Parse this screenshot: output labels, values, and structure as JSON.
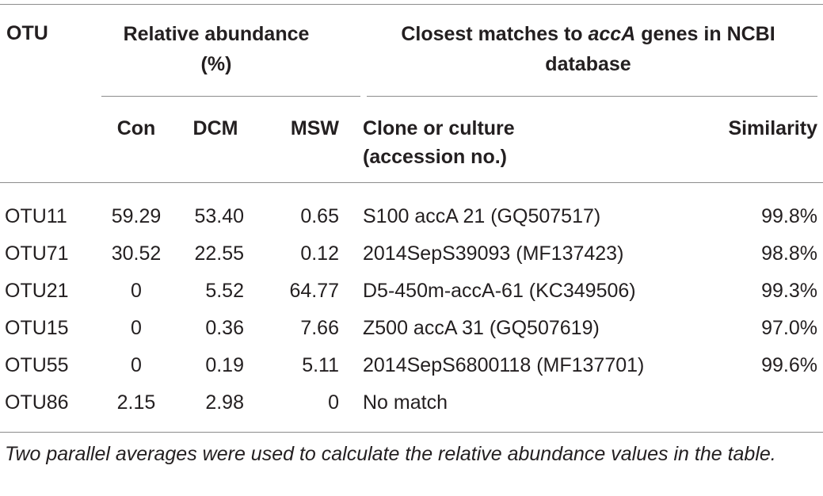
{
  "table": {
    "group_headers": {
      "otu": "OTU",
      "abundance": "Relative abundance (%)",
      "matches": [
        "Closest matches to ",
        "accA",
        " genes in NCBI database"
      ]
    },
    "sub_headers": [
      "Con",
      "DCM",
      "MSW",
      "Clone or culture (accession no.)",
      "Similarity"
    ],
    "rows": [
      [
        "OTU11",
        "59.29",
        "53.40",
        "0.65",
        "S100 accA 21 (GQ507517)",
        "99.8%"
      ],
      [
        "OTU71",
        "30.52",
        "22.55",
        "0.12",
        "2014SepS39093 (MF137423)",
        "98.8%"
      ],
      [
        "OTU21",
        "0",
        "5.52",
        "64.77",
        "D5-450m-accA-61 (KC349506)",
        "99.3%"
      ],
      [
        "OTU15",
        "0",
        "0.36",
        "7.66",
        "Z500 accA 31 (GQ507619)",
        "97.0%"
      ],
      [
        "OTU55",
        "0",
        "0.19",
        "5.11",
        "2014SepS6800118 (MF137701)",
        "99.6%"
      ],
      [
        "OTU86",
        "2.15",
        "2.98",
        "0",
        "No match",
        ""
      ]
    ],
    "footnote": "Two parallel averages were used to calculate the relative abundance values in the table."
  }
}
